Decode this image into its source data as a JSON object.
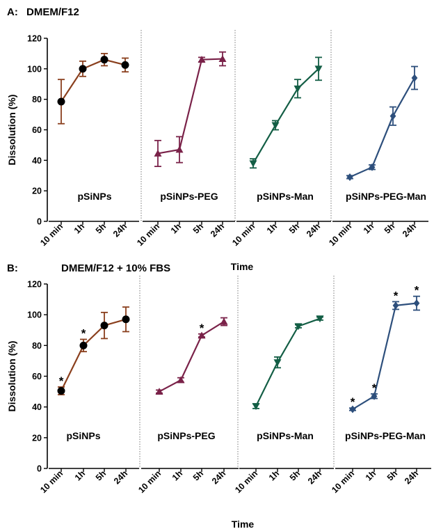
{
  "colors": {
    "pSiNPs": "#8A3F1D",
    "pSiNPs-PEG": "#7A2249",
    "pSiNPs-Man": "#135E45",
    "pSiNPs-PEG-Man": "#2D4F7C",
    "marker_pSiNPs": "#000000"
  },
  "chart_data": [
    {
      "type": "line",
      "panel_label": "A:",
      "title": "DMEM/F12",
      "ylabel": "Dissolution (%)",
      "xlabel": "Time",
      "ylim": [
        0,
        120
      ],
      "yticks": [
        0,
        20,
        40,
        60,
        80,
        100,
        120
      ],
      "categories": [
        "10 min",
        "1h",
        "5h",
        "24h"
      ],
      "grid": false,
      "series": [
        {
          "name": "pSiNPs",
          "marker": "circle",
          "values": [
            78.5,
            100,
            106,
            102.5
          ],
          "err": [
            14.5,
            5,
            4,
            4.5
          ],
          "stars": [
            false,
            false,
            false,
            false
          ]
        },
        {
          "name": "pSiNPs-PEG",
          "marker": "triangle-up",
          "values": [
            44.5,
            47,
            106,
            106.5
          ],
          "err": [
            8.5,
            8.5,
            1.5,
            4.5
          ],
          "stars": [
            false,
            false,
            false,
            false
          ]
        },
        {
          "name": "pSiNPs-Man",
          "marker": "triangle-down",
          "values": [
            38,
            63,
            87,
            100
          ],
          "err": [
            3,
            3,
            6,
            7.5
          ],
          "stars": [
            false,
            false,
            false,
            false
          ]
        },
        {
          "name": "pSiNPs-PEG-Man",
          "marker": "diamond",
          "values": [
            29,
            35.5,
            69,
            94
          ],
          "err": [
            1,
            1.5,
            6,
            7.5
          ],
          "stars": [
            false,
            false,
            false,
            false
          ]
        }
      ]
    },
    {
      "type": "line",
      "panel_label": "B:",
      "title": "DMEM/F12 + 10% FBS",
      "ylabel": "Dissolution (%)",
      "xlabel": "Time",
      "ylim": [
        0,
        120
      ],
      "yticks": [
        0,
        20,
        40,
        60,
        80,
        100,
        120
      ],
      "categories": [
        "10 min",
        "1h",
        "5h",
        "24h"
      ],
      "grid": false,
      "series": [
        {
          "name": "pSiNPs",
          "marker": "circle",
          "values": [
            50.5,
            80,
            93,
            97
          ],
          "err": [
            2.5,
            4,
            8.5,
            8
          ],
          "stars": [
            true,
            true,
            false,
            false
          ]
        },
        {
          "name": "pSiNPs-PEG",
          "marker": "triangle-up",
          "values": [
            50,
            57.5,
            86.5,
            95.5
          ],
          "err": [
            1,
            1.5,
            1,
            2.5
          ],
          "stars": [
            false,
            false,
            true,
            false
          ]
        },
        {
          "name": "pSiNPs-Man",
          "marker": "triangle-down",
          "values": [
            40.5,
            69,
            92.5,
            97.5
          ],
          "err": [
            1.5,
            3.5,
            1,
            1
          ],
          "stars": [
            false,
            false,
            false,
            false
          ]
        },
        {
          "name": "pSiNPs-PEG-Man",
          "marker": "diamond",
          "values": [
            38.5,
            47,
            106,
            107.5
          ],
          "err": [
            0.8,
            1.5,
            2.5,
            4.5
          ],
          "stars": [
            true,
            true,
            true,
            true
          ]
        }
      ]
    }
  ]
}
